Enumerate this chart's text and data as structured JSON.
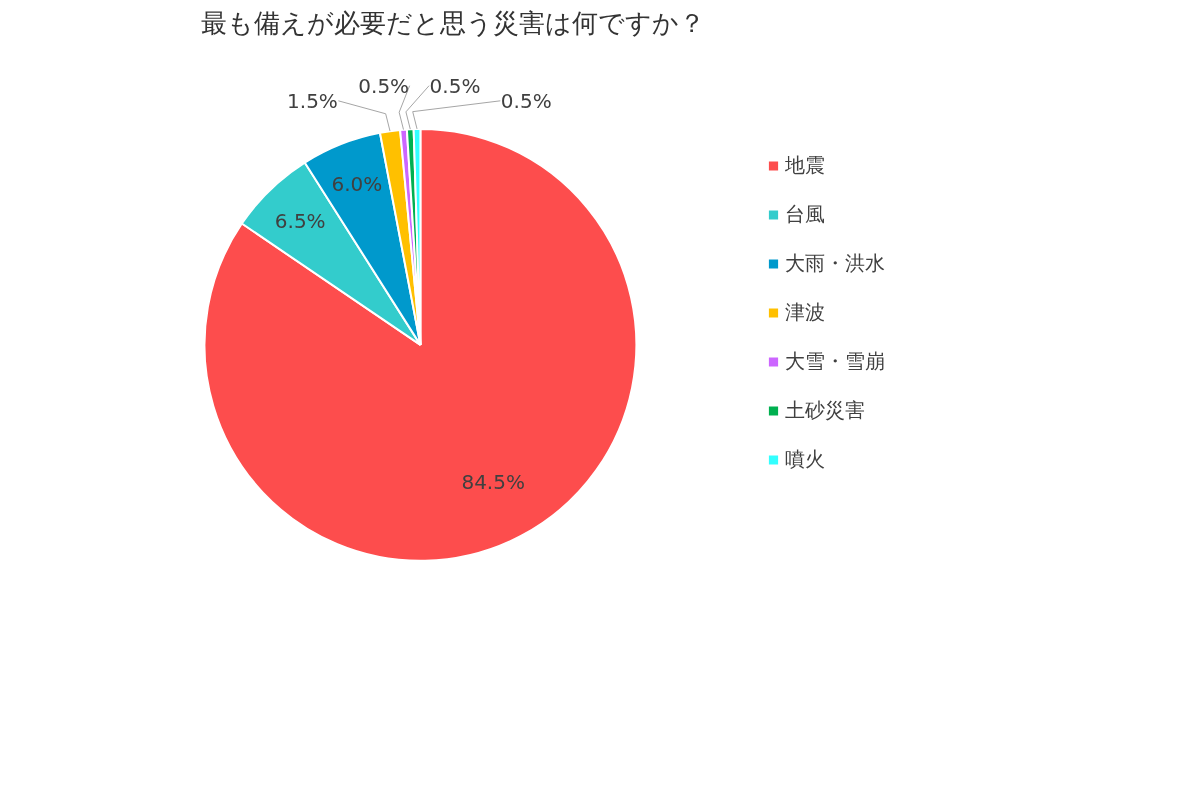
{
  "chart_data": {
    "type": "pie",
    "title": "最も備えが必要だと思う災害は何ですか？",
    "categories": [
      "地震",
      "台風",
      "大雨・洪水",
      "津波",
      "大雪・雪崩",
      "土砂災害",
      "噴火"
    ],
    "values": [
      84.5,
      6.5,
      6.0,
      1.5,
      0.5,
      0.5,
      0.5
    ],
    "value_labels": [
      "84.5%",
      "6.5%",
      "6.0%",
      "1.5%",
      "0.5%",
      "0.5%",
      "0.5%"
    ],
    "colors": [
      "#fd4d4d",
      "#33cccc",
      "#0099cc",
      "#ffc000",
      "#cc66ff",
      "#00b050",
      "#33ffff"
    ],
    "legend": "right"
  }
}
